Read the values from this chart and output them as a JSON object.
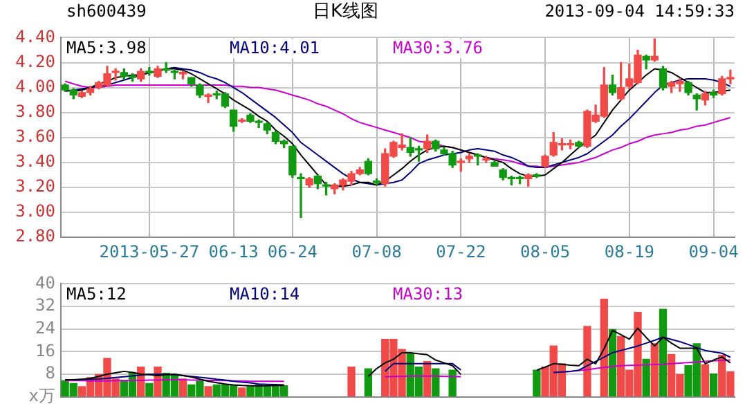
{
  "chart_data": [
    {
      "type": "candlestick",
      "title": "日K线图",
      "annotations": [
        "sh600439",
        "2013-09-04 14:59:33"
      ],
      "categories": [
        null,
        null,
        null,
        null,
        null,
        null,
        null,
        null,
        null,
        null,
        "2013-05-27",
        null,
        null,
        null,
        null,
        null,
        null,
        null,
        null,
        null,
        "06-13",
        null,
        null,
        null,
        null,
        null,
        null,
        "06-24",
        null,
        null,
        null,
        null,
        null,
        null,
        null,
        null,
        null,
        "07-08",
        null,
        null,
        null,
        null,
        null,
        null,
        null,
        null,
        null,
        "07-22",
        null,
        null,
        null,
        null,
        null,
        null,
        null,
        null,
        null,
        "08-05",
        null,
        null,
        null,
        null,
        null,
        null,
        null,
        null,
        null,
        "08-19",
        null,
        null,
        null,
        null,
        null,
        null,
        null,
        null,
        null,
        "09-04",
        null,
        null
      ],
      "ohlc": [
        [
          4.02,
          4.03,
          3.97,
          3.98
        ],
        [
          3.98,
          3.99,
          3.91,
          3.94
        ],
        [
          3.93,
          3.97,
          3.92,
          3.96
        ],
        [
          3.96,
          4.01,
          3.94,
          3.99
        ],
        [
          4.0,
          4.05,
          3.99,
          4.04
        ],
        [
          4.02,
          4.17,
          4.01,
          4.11
        ],
        [
          4.12,
          4.15,
          4.06,
          4.13
        ],
        [
          4.12,
          4.15,
          4.07,
          4.09
        ],
        [
          4.09,
          4.11,
          4.05,
          4.08
        ],
        [
          4.07,
          4.15,
          4.05,
          4.13
        ],
        [
          4.13,
          4.16,
          4.1,
          4.12
        ],
        [
          4.09,
          4.17,
          4.08,
          4.15
        ],
        [
          4.15,
          4.2,
          4.12,
          4.14
        ],
        [
          4.13,
          4.14,
          4.07,
          4.12
        ],
        [
          4.11,
          4.13,
          4.07,
          4.12
        ],
        [
          4.08,
          4.08,
          4.01,
          4.03
        ],
        [
          4.02,
          4.03,
          3.92,
          3.94
        ],
        [
          3.93,
          3.95,
          3.88,
          3.94
        ],
        [
          3.95,
          3.97,
          3.91,
          3.94
        ],
        [
          3.95,
          3.96,
          3.84,
          3.85
        ],
        [
          3.82,
          3.82,
          3.65,
          3.69
        ],
        [
          3.73,
          3.75,
          3.72,
          3.74
        ],
        [
          3.78,
          3.79,
          3.72,
          3.73
        ],
        [
          3.73,
          3.74,
          3.68,
          3.72
        ],
        [
          3.71,
          3.72,
          3.63,
          3.66
        ],
        [
          3.64,
          3.65,
          3.55,
          3.57
        ],
        [
          3.57,
          3.58,
          3.52,
          3.55
        ],
        [
          3.53,
          3.53,
          3.28,
          3.3
        ],
        [
          3.28,
          3.31,
          2.96,
          3.27
        ],
        [
          3.22,
          3.28,
          3.2,
          3.27
        ],
        [
          3.29,
          3.3,
          3.19,
          3.23
        ],
        [
          3.22,
          3.24,
          3.14,
          3.21
        ],
        [
          3.19,
          3.23,
          3.15,
          3.22
        ],
        [
          3.22,
          3.27,
          3.18,
          3.26
        ],
        [
          3.25,
          3.33,
          3.22,
          3.31
        ],
        [
          3.31,
          3.36,
          3.3,
          3.34
        ],
        [
          3.41,
          3.43,
          3.3,
          3.31
        ],
        [
          3.25,
          3.27,
          3.22,
          3.24
        ],
        [
          3.23,
          3.51,
          3.21,
          3.47
        ],
        [
          3.45,
          3.57,
          3.44,
          3.56
        ],
        [
          3.52,
          3.63,
          3.5,
          3.54
        ],
        [
          3.52,
          3.6,
          3.45,
          3.48
        ],
        [
          3.51,
          3.53,
          3.41,
          3.5
        ],
        [
          3.51,
          3.62,
          3.48,
          3.57
        ],
        [
          3.57,
          3.58,
          3.49,
          3.51
        ],
        [
          3.5,
          3.52,
          3.46,
          3.47
        ],
        [
          3.47,
          3.49,
          3.36,
          3.38
        ],
        [
          3.4,
          3.43,
          3.33,
          3.41
        ],
        [
          3.43,
          3.47,
          3.4,
          3.45
        ],
        [
          3.46,
          3.47,
          3.38,
          3.45
        ],
        [
          3.42,
          3.45,
          3.4,
          3.43
        ],
        [
          3.4,
          3.41,
          3.37,
          3.37
        ],
        [
          3.34,
          3.35,
          3.26,
          3.28
        ],
        [
          3.28,
          3.29,
          3.22,
          3.27
        ],
        [
          3.28,
          3.29,
          3.23,
          3.27
        ],
        [
          3.27,
          3.31,
          3.21,
          3.3
        ],
        [
          3.3,
          3.31,
          3.28,
          3.29
        ],
        [
          3.37,
          3.46,
          3.36,
          3.45
        ],
        [
          3.46,
          3.64,
          3.45,
          3.56
        ],
        [
          3.54,
          3.59,
          3.5,
          3.55
        ],
        [
          3.54,
          3.58,
          3.51,
          3.55
        ],
        [
          3.56,
          3.57,
          3.52,
          3.53
        ],
        [
          3.53,
          3.82,
          3.52,
          3.81
        ],
        [
          3.73,
          3.86,
          3.72,
          3.78
        ],
        [
          3.77,
          4.16,
          3.76,
          4.02
        ],
        [
          4.02,
          4.1,
          3.94,
          3.96
        ],
        [
          3.91,
          4.2,
          3.9,
          4.0
        ],
        [
          4.01,
          4.19,
          3.99,
          4.07
        ],
        [
          4.04,
          4.3,
          4.03,
          4.26
        ],
        [
          4.25,
          4.26,
          4.15,
          4.22
        ],
        [
          4.22,
          4.39,
          4.21,
          4.25
        ],
        [
          4.15,
          4.17,
          3.98,
          4.0
        ],
        [
          4.01,
          4.05,
          3.96,
          4.04
        ],
        [
          4.03,
          4.07,
          3.97,
          4.05
        ],
        [
          4.04,
          4.05,
          3.94,
          3.96
        ],
        [
          3.94,
          3.95,
          3.82,
          3.91
        ],
        [
          3.9,
          3.97,
          3.86,
          3.95
        ],
        [
          3.96,
          3.98,
          3.92,
          3.94
        ],
        [
          3.95,
          4.09,
          3.94,
          4.07
        ],
        [
          4.07,
          4.14,
          4.03,
          4.08
        ]
      ],
      "series": [
        {
          "name": "MA5:3.98",
          "type": "line",
          "color": "#000000",
          "values": [
            3.98,
            3.97,
            3.98,
            4.0,
            4.03,
            4.05,
            4.08,
            4.09,
            4.1,
            4.1,
            4.12,
            4.13,
            4.15,
            4.15,
            4.14,
            4.11,
            4.07,
            4.03,
            3.99,
            3.95,
            3.9,
            3.86,
            3.82,
            3.77,
            3.73,
            3.66,
            3.61,
            3.55,
            3.46,
            3.38,
            3.3,
            3.22,
            3.21,
            3.21,
            3.22,
            3.24,
            3.24,
            3.22,
            3.25,
            3.3,
            3.35,
            3.41,
            3.46,
            3.5,
            3.52,
            3.53,
            3.52,
            3.5,
            3.48,
            3.46,
            3.44,
            3.42,
            3.4,
            3.35,
            3.31,
            3.29,
            3.29,
            3.3,
            3.35,
            3.4,
            3.46,
            3.52,
            3.57,
            3.62,
            3.72,
            3.82,
            3.9,
            3.98,
            4.04,
            4.1,
            4.15,
            4.14,
            4.12,
            4.08,
            4.04,
            4.0,
            3.96,
            3.96,
            3.97,
            3.98
          ]
        },
        {
          "name": "MA10:4.01",
          "type": "line",
          "color": "#000080",
          "values": [
            3.97,
            3.98,
            3.99,
            4.0,
            4.01,
            4.02,
            4.04,
            4.06,
            4.08,
            4.1,
            4.12,
            4.13,
            4.15,
            4.16,
            4.15,
            4.14,
            4.12,
            4.09,
            4.07,
            4.04,
            4.0,
            3.96,
            3.91,
            3.86,
            3.81,
            3.76,
            3.7,
            3.64,
            3.56,
            3.51,
            3.46,
            3.41,
            3.36,
            3.31,
            3.27,
            3.24,
            3.23,
            3.22,
            3.23,
            3.24,
            3.26,
            3.32,
            3.39,
            3.42,
            3.44,
            3.46,
            3.47,
            3.48,
            3.5,
            3.51,
            3.5,
            3.49,
            3.46,
            3.44,
            3.41,
            3.37,
            3.36,
            3.36,
            3.38,
            3.4,
            3.42,
            3.44,
            3.47,
            3.52,
            3.57,
            3.62,
            3.69,
            3.75,
            3.82,
            3.89,
            3.96,
            4.02,
            4.04,
            4.06,
            4.07,
            4.07,
            4.07,
            4.06,
            4.04,
            4.01
          ]
        },
        {
          "name": "MA30:3.76",
          "type": "line",
          "color": "#cc00cc",
          "values": [
            4.05,
            4.03,
            4.01,
            4.0,
            4.0,
            4.01,
            4.02,
            4.02,
            4.02,
            4.02,
            4.02,
            4.02,
            4.02,
            4.02,
            4.02,
            4.02,
            4.02,
            4.02,
            4.02,
            4.02,
            4.01,
            4.01,
            4.0,
            4.0,
            3.99,
            3.98,
            3.96,
            3.94,
            3.92,
            3.9,
            3.87,
            3.85,
            3.82,
            3.79,
            3.75,
            3.72,
            3.7,
            3.68,
            3.66,
            3.64,
            3.62,
            3.6,
            3.57,
            3.56,
            3.55,
            3.53,
            3.52,
            3.5,
            3.48,
            3.46,
            3.44,
            3.43,
            3.42,
            3.41,
            3.39,
            3.37,
            3.37,
            3.36,
            3.37,
            3.38,
            3.39,
            3.4,
            3.42,
            3.44,
            3.47,
            3.5,
            3.52,
            3.55,
            3.57,
            3.6,
            3.62,
            3.63,
            3.64,
            3.66,
            3.67,
            3.69,
            3.7,
            3.72,
            3.74,
            3.76
          ]
        }
      ],
      "ylim": [
        2.8,
        4.4
      ],
      "yticks": [
        {
          "value": 2.8,
          "label": "2.80"
        },
        {
          "value": 3.0,
          "label": "3.00"
        },
        {
          "value": 3.2,
          "label": "3.20"
        },
        {
          "value": 3.4,
          "label": "3.40"
        },
        {
          "value": 3.6,
          "label": "3.60"
        },
        {
          "value": 3.8,
          "label": "3.80"
        },
        {
          "value": 4.0,
          "label": "4.00"
        },
        {
          "value": 4.2,
          "label": "4.20"
        },
        {
          "value": 4.4,
          "label": "4.40"
        }
      ],
      "grid": true,
      "legend": "top"
    },
    {
      "type": "bar",
      "categories": [
        null,
        null,
        null,
        null,
        null,
        null,
        null,
        null,
        null,
        null,
        null,
        null,
        null,
        null,
        null,
        null,
        null,
        null,
        null,
        null,
        null,
        null,
        null,
        null,
        null,
        null,
        null,
        null,
        null,
        null,
        null,
        null,
        null,
        null,
        null,
        null,
        null,
        null,
        null,
        null,
        null,
        null,
        null,
        null,
        null,
        null,
        null,
        null,
        null,
        null,
        null,
        null,
        null,
        null,
        null,
        null,
        null,
        null,
        null,
        null,
        null,
        null,
        null,
        null,
        null,
        null,
        null,
        null,
        null,
        null,
        null,
        null,
        null,
        null,
        null,
        null,
        null,
        null,
        null,
        null
      ],
      "values": [
        5.7,
        4.7,
        3.6,
        6.8,
        7.9,
        13.6,
        6.3,
        5.8,
        8.6,
        10.5,
        4.7,
        10.5,
        8.3,
        7.9,
        6.3,
        4.2,
        5.5,
        3.6,
        4.2,
        4.2,
        3.9,
        3.1,
        3.6,
        4.2,
        3.6,
        4.0,
        3.9,
        null,
        null,
        null,
        null,
        null,
        null,
        null,
        10.5,
        null,
        9.9,
        null,
        20.3,
        20.3,
        16.8,
        15.2,
        10.5,
        12.5,
        9.9,
        null,
        9.4,
        null,
        null,
        null,
        null,
        null,
        null,
        null,
        null,
        null,
        9.4,
        10.5,
        18,
        11.7,
        null,
        null,
        24.9,
        null,
        34.6,
        23.8,
        21.4,
        9.4,
        29.9,
        13.3,
        18.8,
        31,
        15,
        7.9,
        11,
        18.8,
        11.4,
        8.1,
        14.7,
        8.9
      ],
      "colors": [
        "#119911",
        "#119911",
        "#f04a48",
        "#f04a48",
        "#f04a48",
        "#f04a48",
        "#f04a48",
        "#119911",
        "#119911",
        "#f04a48",
        "#119911",
        "#f04a48",
        "#119911",
        "#119911",
        "#f04a48",
        "#119911",
        "#119911",
        "#f04a48",
        "#119911",
        "#119911",
        "#119911",
        "#f04a48",
        "#119911",
        "#119911",
        "#119911",
        "#119911",
        "#119911",
        "#119911",
        "#119911",
        "#119911",
        "#119911",
        "#119911",
        "#119911",
        "#119911",
        "#f04a48",
        "#119911",
        "#119911",
        "#119911",
        "#f04a48",
        "#f04a48",
        "#f04a48",
        "#119911",
        "#119911",
        "#f04a48",
        "#119911",
        "#119911",
        "#119911",
        "#119911",
        "#119911",
        "#119911",
        "#119911",
        "#119911",
        "#119911",
        "#119911",
        "#119911",
        "#119911",
        "#119911",
        "#f04a48",
        "#f04a48",
        "#f04a48",
        "#119911",
        "#119911",
        "#f04a48",
        "#119911",
        "#f04a48",
        "#119911",
        "#f04a48",
        "#f04a48",
        "#f04a48",
        "#119911",
        "#f04a48",
        "#119911",
        "#f04a48",
        "#f04a48",
        "#119911",
        "#119911",
        "#f04a48",
        "#119911",
        "#f04a48",
        "#f04a48"
      ],
      "series": [
        {
          "name": "MA5:12",
          "type": "line",
          "color": "#000000",
          "values": [
            6.0,
            6.0,
            6.2,
            6.5,
            7.2,
            8.0,
            8.5,
            9.0,
            8.6,
            8.0,
            7.8,
            7.5,
            7.8,
            8.0,
            7.5,
            7.0,
            6.2,
            5.5,
            5.0,
            4.5,
            4.2,
            4.0,
            3.9,
            3.8,
            3.9,
            4.0,
            4.0,
            null,
            null,
            null,
            null,
            null,
            null,
            null,
            null,
            null,
            7.2,
            10,
            12,
            13.3,
            15.6,
            15.6,
            15.2,
            14.9,
            13,
            12,
            11,
            7.9,
            null,
            null,
            null,
            null,
            null,
            null,
            null,
            null,
            9.4,
            10.5,
            11.7,
            11.5,
            11.2,
            11,
            13.3,
            11.7,
            17,
            23.5,
            22,
            20.4,
            24.3,
            21,
            18,
            21.1,
            19,
            17.2,
            17.2,
            17.2,
            11.7,
            13,
            14.1,
            12
          ]
        },
        {
          "name": "MA10:14",
          "type": "line",
          "color": "#000080",
          "values": [
            6.0,
            6.0,
            6.1,
            6.2,
            6.3,
            6.5,
            6.8,
            7.1,
            7.4,
            7.7,
            8.0,
            8.0,
            7.9,
            7.8,
            7.5,
            7.2,
            6.9,
            6.6,
            6.2,
            5.9,
            5.5,
            5.2,
            4.9,
            4.5,
            4.4,
            4.3,
            4.2,
            null,
            null,
            null,
            null,
            null,
            null,
            null,
            null,
            null,
            null,
            null,
            9.0,
            11.7,
            11.7,
            11.7,
            11.7,
            11.7,
            11.7,
            11.7,
            11.7,
            9.5,
            null,
            null,
            null,
            null,
            null,
            null,
            null,
            null,
            null,
            null,
            8.6,
            8.8,
            9.0,
            9.4,
            11,
            12.5,
            14,
            15.6,
            16.4,
            17.2,
            18,
            19,
            20,
            21.1,
            20.3,
            19.5,
            18.5,
            17.4,
            16.4,
            15.9,
            15.4,
            14
          ]
        },
        {
          "name": "MA30:13",
          "type": "line",
          "color": "#cc00cc",
          "values": [
            5.8,
            5.7,
            5.7,
            5.6,
            5.6,
            5.6,
            5.7,
            5.7,
            5.8,
            5.8,
            5.9,
            5.9,
            6.0,
            6.0,
            6.0,
            5.9,
            5.9,
            5.8,
            5.8,
            5.7,
            5.6,
            5.6,
            5.5,
            5.5,
            5.5,
            5.5,
            5.5,
            null,
            null,
            null,
            null,
            null,
            null,
            null,
            null,
            null,
            null,
            null,
            7.1,
            7.2,
            7.2,
            7.3,
            7.3,
            7.3,
            7.3,
            7.2,
            7.2,
            7.1,
            null,
            null,
            null,
            null,
            null,
            null,
            null,
            null,
            null,
            null,
            8.6,
            8.8,
            9.0,
            9.3,
            9.6,
            10,
            10.4,
            10.7,
            11,
            11.1,
            11.2,
            11.3,
            11.4,
            11.5,
            11.7,
            11.9,
            12.1,
            12.3,
            12.5,
            12.7,
            12.9,
            13
          ]
        }
      ],
      "ylim": [
        0,
        40
      ],
      "yticks": [
        {
          "value": 0,
          "label": "x万"
        },
        8,
        16,
        24,
        32,
        40
      ],
      "tick_labels": "y",
      "grid": true,
      "legend": "top"
    }
  ]
}
